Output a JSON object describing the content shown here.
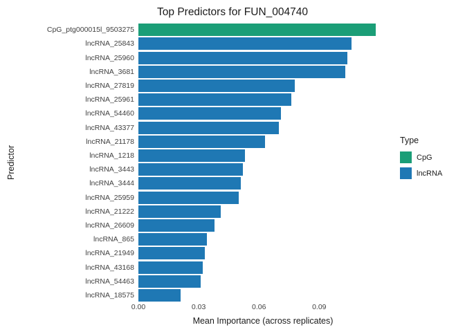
{
  "chart_data": {
    "type": "bar",
    "orientation": "horizontal",
    "title": "Top Predictors for FUN_004740",
    "xlabel": "Mean Importance (across replicates)",
    "ylabel": "Predictor",
    "xlim": [
      0,
      0.124
    ],
    "x_ticks": [
      {
        "value": 0.0,
        "label": "0.00"
      },
      {
        "value": 0.03,
        "label": "0.03"
      },
      {
        "value": 0.06,
        "label": "0.06"
      },
      {
        "value": 0.09,
        "label": "0.09"
      }
    ],
    "categories": [
      "CpG_ptg000015l_9503275",
      "lncRNA_25843",
      "lncRNA_25960",
      "lncRNA_3681",
      "lncRNA_27819",
      "lncRNA_25961",
      "lncRNA_54460",
      "lncRNA_43377",
      "lncRNA_21178",
      "lncRNA_1218",
      "lncRNA_3443",
      "lncRNA_3444",
      "lncRNA_25959",
      "lncRNA_21222",
      "lncRNA_26609",
      "lncRNA_865",
      "lncRNA_21949",
      "lncRNA_43168",
      "lncRNA_54463",
      "lncRNA_18575"
    ],
    "values": [
      0.118,
      0.106,
      0.104,
      0.103,
      0.078,
      0.076,
      0.071,
      0.07,
      0.063,
      0.053,
      0.052,
      0.051,
      0.05,
      0.041,
      0.038,
      0.034,
      0.033,
      0.032,
      0.031,
      0.021
    ],
    "types": [
      "CpG",
      "lncRNA",
      "lncRNA",
      "lncRNA",
      "lncRNA",
      "lncRNA",
      "lncRNA",
      "lncRNA",
      "lncRNA",
      "lncRNA",
      "lncRNA",
      "lncRNA",
      "lncRNA",
      "lncRNA",
      "lncRNA",
      "lncRNA",
      "lncRNA",
      "lncRNA",
      "lncRNA",
      "lncRNA"
    ],
    "colors": {
      "CpG": "#1B9E77",
      "lncRNA": "#1F78B4"
    },
    "legend": {
      "title": "Type",
      "items": [
        {
          "label": "CpG"
        },
        {
          "label": "lncRNA"
        }
      ]
    },
    "grid": "none",
    "legend_position": "right",
    "background": "#FFFFFF"
  }
}
